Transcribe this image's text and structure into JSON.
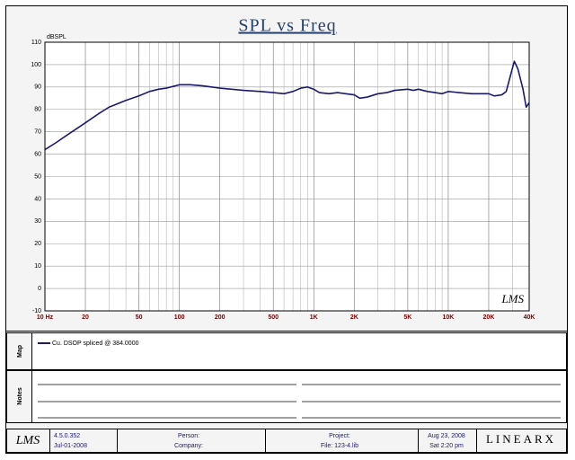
{
  "chart_data": {
    "type": "line",
    "title": "SPL vs Freq",
    "y_label": "dBSPL",
    "log_x": true,
    "grid": true,
    "xlim": [
      10,
      40000
    ],
    "xticks": [
      {
        "value": 10,
        "label": "10 Hz"
      },
      20,
      50,
      100,
      200,
      500,
      {
        "value": 1000,
        "label": "1K"
      },
      {
        "value": 2000,
        "label": "2K"
      },
      {
        "value": 5000,
        "label": "5K"
      },
      {
        "value": 10000,
        "label": "10K"
      },
      {
        "value": 20000,
        "label": "20K"
      },
      {
        "value": 40000,
        "label": "40K"
      }
    ],
    "xminor": [
      30,
      40,
      60,
      70,
      80,
      90,
      300,
      400,
      600,
      700,
      800,
      900,
      3000,
      4000,
      6000,
      7000,
      8000,
      9000,
      30000
    ],
    "ylim": [
      -10,
      110
    ],
    "yticks": [
      -10,
      0,
      10,
      20,
      30,
      40,
      50,
      60,
      70,
      80,
      90,
      100,
      110
    ],
    "x": [
      10,
      12,
      15,
      20,
      25,
      30,
      40,
      50,
      60,
      70,
      80,
      100,
      120,
      150,
      200,
      300,
      400,
      500,
      600,
      700,
      800,
      900,
      1000,
      1100,
      1300,
      1500,
      2000,
      2200,
      2500,
      3000,
      3500,
      4000,
      5000,
      5500,
      6000,
      7000,
      8000,
      9000,
      10000,
      12000,
      15000,
      20000,
      22000,
      25000,
      27000,
      29000,
      31000,
      33000,
      36000,
      38000,
      40000
    ],
    "series": [
      {
        "name": "Cu. DSOP spliced @ 384.0000",
        "color": "#1a1a6e",
        "values": [
          62,
          65,
          69,
          74,
          78,
          81,
          84,
          86,
          88,
          89,
          89.5,
          91,
          91,
          90.5,
          89.5,
          88.5,
          88,
          87.5,
          87,
          88,
          89.5,
          90,
          89,
          87.5,
          87,
          87.5,
          86.5,
          85,
          85.5,
          87,
          87.5,
          88.5,
          89,
          88.5,
          89,
          88,
          87.5,
          87,
          88,
          87.5,
          87,
          87,
          86,
          86.5,
          88,
          95,
          101.5,
          98,
          89,
          81,
          83
        ]
      }
    ],
    "watermark": "LMS"
  },
  "panels": {
    "map_label": "Map",
    "notes_label": "Notes"
  },
  "footer": {
    "logo": "LMS",
    "version": "4.5.0.352",
    "build_date": "Jul-01-2008",
    "person": "Person:",
    "company": "Company:",
    "project": "Project:",
    "file": "File: 123-4.lib",
    "date": "Aug 23, 2008",
    "time": "Sat 2:20 pm",
    "brand": "LINEARX"
  }
}
